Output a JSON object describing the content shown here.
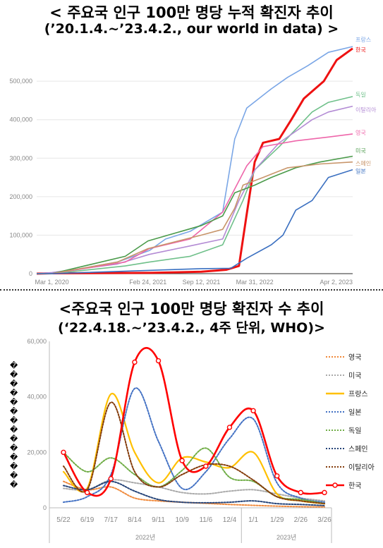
{
  "chart_data": [
    {
      "type": "line",
      "title": "< 주요국 인구 100만 명당 누적 확진자 추이",
      "subtitle": "(’20.1.4.~’23.4.2., our world in data) >",
      "x_ticks": [
        "Mar 1, 2020",
        "Feb 24, 2021",
        "Sep 12, 2021",
        "Mar 31, 2022",
        "Apr 2, 2023"
      ],
      "y_ticks": [
        "0",
        "100,000",
        "200,000",
        "300,000",
        "400,000",
        "500,000"
      ],
      "ylim": [
        0,
        590000
      ],
      "xlim": [
        "2020-01-04",
        "2023-04-02"
      ],
      "grid": true,
      "legend": "right-end labels",
      "series": [
        {
          "name": "프랑스",
          "color": "#7aa6e6",
          "x": [
            "2020-01-04",
            "2020-03-01",
            "2020-11-01",
            "2021-03-01",
            "2021-05-01",
            "2021-08-01",
            "2021-12-01",
            "2022-01-15",
            "2022-03-01",
            "2022-06-01",
            "2022-08-01",
            "2022-10-15",
            "2023-01-01",
            "2023-04-02"
          ],
          "y": [
            0,
            0,
            30000,
            60000,
            90000,
            110000,
            160000,
            350000,
            430000,
            480000,
            510000,
            540000,
            575000,
            590000
          ]
        },
        {
          "name": "한국",
          "color": "#ee1111",
          "x": [
            "2020-01-04",
            "2020-03-01",
            "2021-03-01",
            "2021-09-12",
            "2021-12-15",
            "2022-01-31",
            "2022-02-28",
            "2022-03-31",
            "2022-05-01",
            "2022-07-01",
            "2022-08-15",
            "2022-10-01",
            "2022-12-15",
            "2023-02-01",
            "2023-04-02"
          ],
          "y": [
            0,
            1000,
            2000,
            5000,
            10000,
            20000,
            150000,
            290000,
            340000,
            350000,
            400000,
            455000,
            500000,
            555000,
            585000
          ]
        },
        {
          "name": "독일",
          "color": "#6fc08a",
          "x": [
            "2020-01-04",
            "2020-03-01",
            "2020-12-01",
            "2021-03-01",
            "2021-08-01",
            "2021-12-01",
            "2022-02-15",
            "2022-04-01",
            "2022-07-01",
            "2022-09-01",
            "2022-11-01",
            "2023-01-01",
            "2023-04-02"
          ],
          "y": [
            0,
            0,
            20000,
            30000,
            45000,
            75000,
            190000,
            270000,
            330000,
            375000,
            420000,
            445000,
            460000
          ]
        },
        {
          "name": "이탈리아",
          "color": "#b38bd4",
          "x": [
            "2020-01-04",
            "2020-03-01",
            "2020-11-01",
            "2021-03-01",
            "2021-08-01",
            "2021-12-01",
            "2022-01-31",
            "2022-04-01",
            "2022-07-01",
            "2022-09-01",
            "2022-11-01",
            "2023-01-01",
            "2023-04-02"
          ],
          "y": [
            0,
            3000,
            25000,
            50000,
            72000,
            90000,
            190000,
            270000,
            340000,
            370000,
            400000,
            420000,
            435000
          ]
        },
        {
          "name": "영국",
          "color": "#ee66aa",
          "x": [
            "2020-01-04",
            "2020-03-01",
            "2020-12-01",
            "2021-03-01",
            "2021-08-01",
            "2021-12-01",
            "2022-01-15",
            "2022-03-01",
            "2022-05-01",
            "2022-09-01",
            "2023-01-01",
            "2023-04-02"
          ],
          "y": [
            0,
            0,
            30000,
            65000,
            90000,
            160000,
            220000,
            280000,
            330000,
            345000,
            355000,
            363000
          ]
        },
        {
          "name": "미국",
          "color": "#4a9a4a",
          "x": [
            "2020-01-04",
            "2020-03-01",
            "2020-12-01",
            "2021-02-24",
            "2021-09-12",
            "2021-12-01",
            "2022-01-15",
            "2022-03-31",
            "2022-06-01",
            "2022-09-01",
            "2022-12-01",
            "2023-04-02"
          ],
          "y": [
            0,
            0,
            45000,
            85000,
            125000,
            150000,
            210000,
            230000,
            250000,
            275000,
            290000,
            305000
          ]
        },
        {
          "name": "스페인",
          "color": "#c8956a",
          "x": [
            "2020-01-04",
            "2020-03-01",
            "2020-11-01",
            "2021-02-24",
            "2021-09-12",
            "2021-12-01",
            "2022-01-15",
            "2022-02-15",
            "2022-05-01",
            "2022-08-01",
            "2022-12-01",
            "2023-04-02"
          ],
          "y": [
            0,
            0,
            30000,
            65000,
            100000,
            115000,
            170000,
            230000,
            250000,
            275000,
            285000,
            290000
          ]
        },
        {
          "name": "일본",
          "color": "#3a6fc0",
          "x": [
            "2020-01-04",
            "2020-03-01",
            "2021-09-12",
            "2021-12-31",
            "2022-03-01",
            "2022-06-01",
            "2022-07-15",
            "2022-09-01",
            "2022-11-01",
            "2023-01-01",
            "2023-04-02"
          ],
          "y": [
            0,
            0,
            13000,
            14000,
            40000,
            75000,
            100000,
            165000,
            190000,
            250000,
            270000
          ]
        }
      ]
    },
    {
      "type": "line",
      "title": "<주요국 인구 100만 명당 확진자 수 추이",
      "subtitle": "(‘22.4.18.~’23.4.2., 4주 단위, WHO)>",
      "ylabel": "��������������",
      "categories": [
        "5/22",
        "6/19",
        "7/17",
        "8/14",
        "9/11",
        "10/9",
        "11/6",
        "12/4",
        "1/1",
        "1/29",
        "2/26",
        "3/26"
      ],
      "group_labels": [
        "2022년",
        "2023년"
      ],
      "y_ticks": [
        "0",
        "20,000",
        "40,000",
        "60,000"
      ],
      "ylim": [
        0,
        60000
      ],
      "grid": false,
      "legend": "right",
      "series": [
        {
          "name": "영국",
          "color": "#f08a3c",
          "style": "dotted",
          "values": [
            9500,
            6500,
            7500,
            3500,
            2500,
            2000,
            1600,
            1200,
            900,
            600,
            400,
            300
          ]
        },
        {
          "name": "미국",
          "color": "#aaaaaa",
          "style": "dotted",
          "values": [
            7000,
            6500,
            10000,
            9000,
            7500,
            5500,
            5000,
            6000,
            6500,
            5000,
            3500,
            2500
          ]
        },
        {
          "name": "프랑스",
          "color": "#ffc000",
          "style": "solid",
          "values": [
            13000,
            7000,
            41000,
            20000,
            9000,
            18000,
            16500,
            14500,
            20000,
            5000,
            2500,
            1500
          ]
        },
        {
          "name": "일본",
          "color": "#4472c4",
          "style": "dotted",
          "values": [
            2000,
            4000,
            12000,
            43000,
            24000,
            7000,
            13000,
            25000,
            32000,
            9000,
            3500,
            2000
          ]
        },
        {
          "name": "독일",
          "color": "#70ad47",
          "style": "dotted",
          "values": [
            20000,
            13000,
            18000,
            12000,
            7500,
            13500,
            21500,
            11000,
            9500,
            4000,
            3000,
            1500
          ]
        },
        {
          "name": "스페인",
          "color": "#264478",
          "style": "dotted",
          "values": [
            8000,
            6500,
            9500,
            6000,
            3000,
            2000,
            1800,
            2000,
            2500,
            1500,
            1200,
            800
          ]
        },
        {
          "name": "이탈리아",
          "color": "#843c0c",
          "style": "dotted",
          "values": [
            15000,
            6500,
            38000,
            13000,
            7500,
            12000,
            15500,
            15000,
            10000,
            4000,
            2500,
            1500
          ]
        },
        {
          "name": "한국",
          "color": "#ff0000",
          "style": "solid",
          "values": [
            20000,
            5500,
            10500,
            52500,
            53000,
            17000,
            15000,
            29000,
            35000,
            11500,
            5500,
            5500
          ]
        }
      ]
    }
  ]
}
